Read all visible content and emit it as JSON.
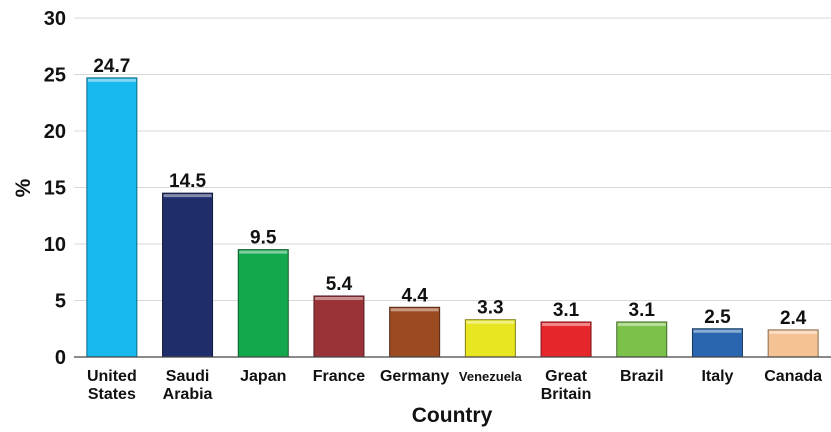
{
  "chart_data": {
    "type": "bar",
    "title": "",
    "xlabel": "Country",
    "ylabel": "%",
    "ylim": [
      0,
      30
    ],
    "yticks": [
      0,
      5,
      10,
      15,
      20,
      25,
      30
    ],
    "grid": true,
    "categories": [
      [
        "United",
        "States"
      ],
      [
        "Saudi",
        "Arabia"
      ],
      [
        "Japan"
      ],
      [
        "France"
      ],
      [
        "Germany"
      ],
      [
        "Venezuela"
      ],
      [
        "Great",
        "Britain"
      ],
      [
        "Brazil"
      ],
      [
        "Italy"
      ],
      [
        "Canada"
      ]
    ],
    "values": [
      24.7,
      14.5,
      9.5,
      5.4,
      4.4,
      3.3,
      3.1,
      3.1,
      2.5,
      2.4
    ],
    "data_labels": [
      "24.7",
      "14.5",
      "9.5",
      "5.4",
      "4.4",
      "3.3",
      "3.1",
      "3.1",
      "2.5",
      "2.4"
    ],
    "colors": [
      "#18b9ee",
      "#1f2d6b",
      "#14a84e",
      "#9a3338",
      "#9b4a22",
      "#e8e620",
      "#e5262b",
      "#7cc24a",
      "#2a66b0",
      "#f5c393"
    ]
  }
}
